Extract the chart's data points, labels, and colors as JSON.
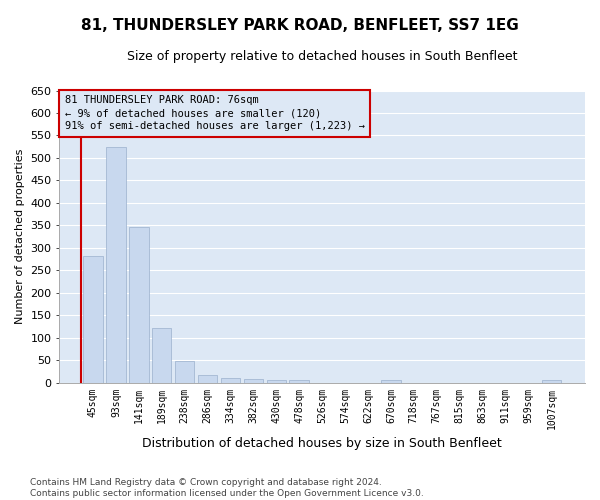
{
  "title": "81, THUNDERSLEY PARK ROAD, BENFLEET, SS7 1EG",
  "subtitle": "Size of property relative to detached houses in South Benfleet",
  "xlabel": "Distribution of detached houses by size in South Benfleet",
  "ylabel": "Number of detached properties",
  "footnote": "Contains HM Land Registry data © Crown copyright and database right 2024.\nContains public sector information licensed under the Open Government Licence v3.0.",
  "bar_color": "#c8d8ee",
  "bar_edge_color": "#9ab0cc",
  "annotation_box_color": "#cc0000",
  "vline_color": "#cc0000",
  "figure_bg": "#ffffff",
  "axes_bg": "#dde8f5",
  "grid_color": "#ffffff",
  "categories": [
    "45sqm",
    "93sqm",
    "141sqm",
    "189sqm",
    "238sqm",
    "286sqm",
    "334sqm",
    "382sqm",
    "430sqm",
    "478sqm",
    "526sqm",
    "574sqm",
    "622sqm",
    "670sqm",
    "718sqm",
    "767sqm",
    "815sqm",
    "863sqm",
    "911sqm",
    "959sqm",
    "1007sqm"
  ],
  "values": [
    282,
    524,
    346,
    122,
    48,
    16,
    10,
    9,
    6,
    5,
    0,
    0,
    0,
    5,
    0,
    0,
    0,
    0,
    0,
    0,
    5
  ],
  "ylim": [
    0,
    650
  ],
  "yticks": [
    0,
    50,
    100,
    150,
    200,
    250,
    300,
    350,
    400,
    450,
    500,
    550,
    600,
    650
  ],
  "property_label": "81 THUNDERSLEY PARK ROAD: 76sqm",
  "annotation_line1": "← 9% of detached houses are smaller (120)",
  "annotation_line2": "91% of semi-detached houses are larger (1,223) →",
  "vline_x_index": 0,
  "figsize": [
    6.0,
    5.0
  ],
  "dpi": 100,
  "title_fontsize": 11,
  "subtitle_fontsize": 9,
  "ylabel_fontsize": 8,
  "xlabel_fontsize": 9,
  "ytick_fontsize": 8,
  "xtick_fontsize": 7,
  "annot_fontsize": 7.5,
  "footnote_fontsize": 6.5
}
